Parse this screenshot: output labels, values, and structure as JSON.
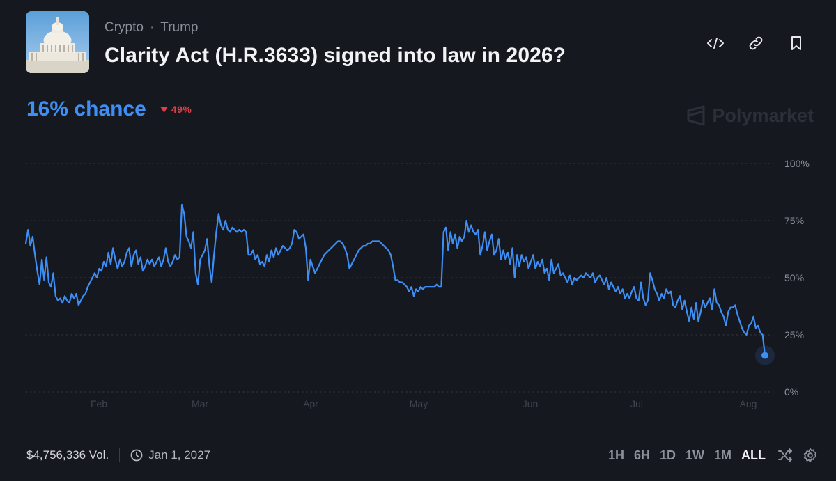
{
  "market": {
    "categories": [
      "Crypto",
      "Trump"
    ],
    "separator": "·",
    "title": "Clarity Act (H.R.3633) signed into law in 2026?",
    "chance_text": "16% chance",
    "change_text": "49%",
    "change_direction": "down",
    "brand": "Polymarket"
  },
  "actions": [
    {
      "name": "embed-icon"
    },
    {
      "name": "link-icon"
    },
    {
      "name": "bookmark-icon"
    }
  ],
  "chart_data": {
    "type": "line",
    "title": "",
    "xlabel": "",
    "ylabel": "",
    "x_tick_labels": [
      "Feb",
      "Mar",
      "Apr",
      "May",
      "Jun",
      "Jul",
      "Aug"
    ],
    "y_tick_labels": [
      "100%",
      "75%",
      "50%",
      "25%",
      "0%"
    ],
    "ylim": [
      0,
      100
    ],
    "grid": true,
    "series": [
      {
        "color": "#3e8ff5",
        "values": [
          [
            0,
            65
          ],
          [
            1,
            71
          ],
          [
            2,
            64
          ],
          [
            3,
            68
          ],
          [
            4,
            60
          ],
          [
            5,
            53
          ],
          [
            6,
            47
          ],
          [
            7,
            58
          ],
          [
            8,
            49
          ],
          [
            9,
            59
          ],
          [
            10,
            48
          ],
          [
            11,
            46
          ],
          [
            12,
            52
          ],
          [
            13,
            42
          ],
          [
            14,
            40
          ],
          [
            15,
            41
          ],
          [
            16,
            39
          ],
          [
            17,
            42
          ],
          [
            18,
            40
          ],
          [
            19,
            39
          ],
          [
            20,
            43
          ],
          [
            21,
            41
          ],
          [
            22,
            43
          ],
          [
            23,
            38
          ],
          [
            24,
            40
          ],
          [
            25,
            42
          ],
          [
            26,
            43
          ],
          [
            27,
            46
          ],
          [
            28,
            48
          ],
          [
            29,
            50
          ],
          [
            30,
            52
          ],
          [
            31,
            50
          ],
          [
            32,
            54
          ],
          [
            33,
            53
          ],
          [
            34,
            57
          ],
          [
            35,
            55
          ],
          [
            36,
            61
          ],
          [
            37,
            56
          ],
          [
            38,
            63
          ],
          [
            39,
            58
          ],
          [
            40,
            54
          ],
          [
            41,
            58
          ],
          [
            42,
            55
          ],
          [
            43,
            57
          ],
          [
            44,
            61
          ],
          [
            45,
            63
          ],
          [
            46,
            55
          ],
          [
            47,
            60
          ],
          [
            48,
            62
          ],
          [
            49,
            56
          ],
          [
            50,
            59
          ],
          [
            51,
            53
          ],
          [
            52,
            55
          ],
          [
            53,
            58
          ],
          [
            54,
            56
          ],
          [
            55,
            58
          ],
          [
            56,
            55
          ],
          [
            57,
            57
          ],
          [
            58,
            59
          ],
          [
            59,
            55
          ],
          [
            60,
            58
          ],
          [
            61,
            63
          ],
          [
            62,
            57
          ],
          [
            63,
            55
          ],
          [
            64,
            57
          ],
          [
            65,
            60
          ],
          [
            66,
            58
          ],
          [
            67,
            59
          ],
          [
            68,
            82
          ],
          [
            69,
            78
          ],
          [
            70,
            68
          ],
          [
            71,
            66
          ],
          [
            72,
            63
          ],
          [
            73,
            70
          ],
          [
            74,
            52
          ],
          [
            75,
            47
          ],
          [
            76,
            58
          ],
          [
            77,
            60
          ],
          [
            78,
            62
          ],
          [
            79,
            67
          ],
          [
            80,
            55
          ],
          [
            81,
            48
          ],
          [
            82,
            60
          ],
          [
            83,
            70
          ],
          [
            84,
            78
          ],
          [
            85,
            73
          ],
          [
            86,
            71
          ],
          [
            87,
            75
          ],
          [
            88,
            71
          ],
          [
            89,
            70
          ],
          [
            90,
            72
          ],
          [
            91,
            71
          ],
          [
            92,
            70
          ],
          [
            93,
            71
          ],
          [
            94,
            70
          ],
          [
            95,
            71
          ],
          [
            96,
            70
          ],
          [
            97,
            60
          ],
          [
            98,
            60
          ],
          [
            99,
            62
          ],
          [
            100,
            58
          ],
          [
            101,
            60
          ],
          [
            102,
            56
          ],
          [
            103,
            57
          ],
          [
            104,
            55
          ],
          [
            105,
            60
          ],
          [
            106,
            57
          ],
          [
            107,
            62
          ],
          [
            108,
            59
          ],
          [
            109,
            63
          ],
          [
            110,
            60
          ],
          [
            111,
            62
          ],
          [
            112,
            64
          ],
          [
            113,
            63
          ],
          [
            114,
            62
          ],
          [
            115,
            63
          ],
          [
            116,
            65
          ],
          [
            117,
            71
          ],
          [
            118,
            70
          ],
          [
            119,
            67
          ],
          [
            120,
            68
          ],
          [
            121,
            69
          ],
          [
            122,
            63
          ],
          [
            123,
            49
          ],
          [
            124,
            58
          ],
          [
            125,
            55
          ],
          [
            126,
            52
          ],
          [
            127,
            54
          ],
          [
            128,
            56
          ],
          [
            129,
            58
          ],
          [
            130,
            60
          ],
          [
            131,
            61
          ],
          [
            132,
            62
          ],
          [
            133,
            63
          ],
          [
            134,
            64
          ],
          [
            135,
            65
          ],
          [
            136,
            66
          ],
          [
            137,
            66
          ],
          [
            138,
            65
          ],
          [
            139,
            63
          ],
          [
            140,
            60
          ],
          [
            141,
            54
          ],
          [
            142,
            56
          ],
          [
            143,
            58
          ],
          [
            144,
            60
          ],
          [
            145,
            62
          ],
          [
            146,
            63
          ],
          [
            147,
            64
          ],
          [
            148,
            64
          ],
          [
            149,
            65
          ],
          [
            150,
            65
          ],
          [
            151,
            66
          ],
          [
            152,
            66
          ],
          [
            153,
            66
          ],
          [
            154,
            66
          ],
          [
            155,
            65
          ],
          [
            156,
            64
          ],
          [
            157,
            63
          ],
          [
            158,
            62
          ],
          [
            159,
            60
          ],
          [
            160,
            55
          ],
          [
            161,
            49
          ],
          [
            162,
            49
          ],
          [
            163,
            48
          ],
          [
            164,
            48
          ],
          [
            165,
            47
          ],
          [
            166,
            46
          ],
          [
            167,
            44
          ],
          [
            168,
            46
          ],
          [
            169,
            42
          ],
          [
            170,
            45
          ],
          [
            171,
            44
          ],
          [
            172,
            46
          ],
          [
            173,
            45
          ],
          [
            174,
            46
          ],
          [
            175,
            46
          ],
          [
            176,
            46
          ],
          [
            177,
            46
          ],
          [
            178,
            46
          ],
          [
            179,
            47
          ],
          [
            180,
            46
          ],
          [
            181,
            46
          ],
          [
            182,
            70
          ],
          [
            183,
            72
          ],
          [
            184,
            62
          ],
          [
            185,
            70
          ],
          [
            186,
            65
          ],
          [
            187,
            69
          ],
          [
            188,
            63
          ],
          [
            189,
            68
          ],
          [
            190,
            66
          ],
          [
            191,
            68
          ],
          [
            192,
            75
          ],
          [
            193,
            70
          ],
          [
            194,
            73
          ],
          [
            195,
            70
          ],
          [
            196,
            69
          ],
          [
            197,
            71
          ],
          [
            198,
            60
          ],
          [
            199,
            64
          ],
          [
            200,
            70
          ],
          [
            201,
            62
          ],
          [
            202,
            66
          ],
          [
            203,
            69
          ],
          [
            204,
            60
          ],
          [
            205,
            62
          ],
          [
            206,
            67
          ],
          [
            207,
            58
          ],
          [
            208,
            62
          ],
          [
            209,
            58
          ],
          [
            210,
            61
          ],
          [
            211,
            56
          ],
          [
            212,
            63
          ],
          [
            213,
            50
          ],
          [
            214,
            60
          ],
          [
            215,
            55
          ],
          [
            216,
            60
          ],
          [
            217,
            57
          ],
          [
            218,
            59
          ],
          [
            219,
            54
          ],
          [
            220,
            57
          ],
          [
            221,
            60
          ],
          [
            222,
            54
          ],
          [
            223,
            57
          ],
          [
            224,
            55
          ],
          [
            225,
            58
          ],
          [
            226,
            52
          ],
          [
            227,
            54
          ],
          [
            228,
            49
          ],
          [
            229,
            58
          ],
          [
            230,
            52
          ],
          [
            231,
            54
          ],
          [
            232,
            56
          ],
          [
            233,
            51
          ],
          [
            234,
            52
          ],
          [
            235,
            50
          ],
          [
            236,
            48
          ],
          [
            237,
            51
          ],
          [
            238,
            47
          ],
          [
            239,
            50
          ],
          [
            240,
            49
          ],
          [
            241,
            50
          ],
          [
            242,
            51
          ],
          [
            243,
            50
          ],
          [
            244,
            52
          ],
          [
            245,
            51
          ],
          [
            246,
            50
          ],
          [
            247,
            52
          ],
          [
            248,
            48
          ],
          [
            249,
            50
          ],
          [
            250,
            51
          ],
          [
            251,
            49
          ],
          [
            252,
            47
          ],
          [
            253,
            50
          ],
          [
            254,
            45
          ],
          [
            255,
            48
          ],
          [
            256,
            46
          ],
          [
            257,
            44
          ],
          [
            258,
            46
          ],
          [
            259,
            43
          ],
          [
            260,
            45
          ],
          [
            261,
            41
          ],
          [
            262,
            43
          ],
          [
            263,
            41
          ],
          [
            264,
            44
          ],
          [
            265,
            46
          ],
          [
            266,
            41
          ],
          [
            267,
            40
          ],
          [
            268,
            48
          ],
          [
            269,
            41
          ],
          [
            270,
            38
          ],
          [
            271,
            40
          ],
          [
            272,
            52
          ],
          [
            273,
            49
          ],
          [
            274,
            45
          ],
          [
            275,
            43
          ],
          [
            276,
            40
          ],
          [
            277,
            43
          ],
          [
            278,
            41
          ],
          [
            279,
            45
          ],
          [
            280,
            43
          ],
          [
            281,
            44
          ],
          [
            282,
            38
          ],
          [
            283,
            37
          ],
          [
            284,
            40
          ],
          [
            285,
            42
          ],
          [
            286,
            36
          ],
          [
            287,
            40
          ],
          [
            288,
            35
          ],
          [
            289,
            31
          ],
          [
            290,
            37
          ],
          [
            291,
            32
          ],
          [
            292,
            39
          ],
          [
            293,
            31
          ],
          [
            294,
            35
          ],
          [
            295,
            40
          ],
          [
            296,
            37
          ],
          [
            297,
            39
          ],
          [
            298,
            41
          ],
          [
            299,
            36
          ],
          [
            300,
            45
          ],
          [
            301,
            39
          ],
          [
            302,
            38
          ],
          [
            303,
            35
          ],
          [
            304,
            33
          ],
          [
            305,
            29
          ],
          [
            306,
            35
          ],
          [
            307,
            37
          ],
          [
            308,
            37
          ],
          [
            309,
            38
          ],
          [
            310,
            34
          ],
          [
            311,
            31
          ],
          [
            312,
            28
          ],
          [
            313,
            26
          ],
          [
            314,
            25
          ],
          [
            315,
            29
          ],
          [
            316,
            30
          ],
          [
            317,
            33
          ],
          [
            318,
            28
          ],
          [
            319,
            29
          ],
          [
            320,
            26
          ],
          [
            321,
            25
          ],
          [
            322,
            16
          ]
        ]
      }
    ],
    "current_value": 16
  },
  "footer": {
    "volume": "$4,756,336 Vol.",
    "end_date": "Jan 1, 2027"
  },
  "ranges": [
    {
      "label": "1H",
      "active": false
    },
    {
      "label": "6H",
      "active": false
    },
    {
      "label": "1D",
      "active": false
    },
    {
      "label": "1W",
      "active": false
    },
    {
      "label": "1M",
      "active": false
    },
    {
      "label": "ALL",
      "active": true
    }
  ]
}
